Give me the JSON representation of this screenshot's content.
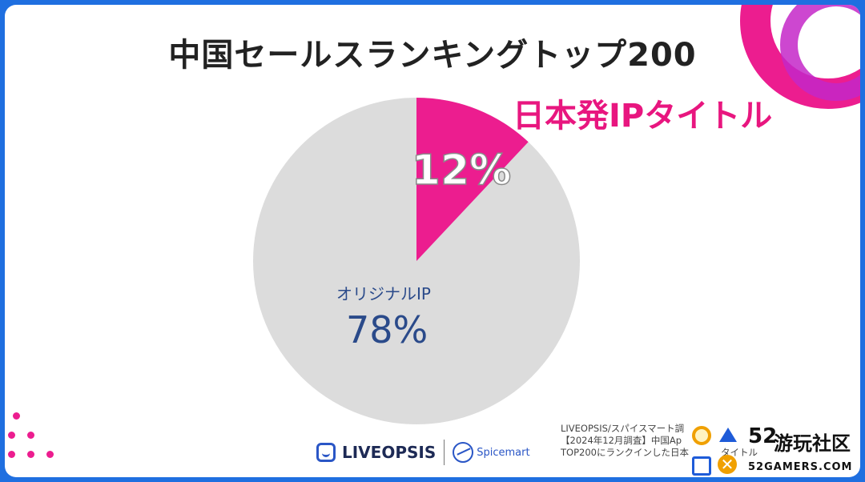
{
  "title": "中国セールスランキングトップ200",
  "chart_data": {
    "type": "pie",
    "slices": [
      {
        "label": "日本発IPタイトル",
        "value": 12,
        "display": "12%",
        "color": "#ec1d8f"
      },
      {
        "label": "オリジナルIP",
        "value": 78,
        "display": "78%",
        "color": "#dcdcdc"
      }
    ]
  },
  "logos": {
    "liveopsis": "LIVEOPSIS",
    "spicemart": "Spicemart"
  },
  "source_lines": [
    "LIVEOPSIS/スパイスマート調",
    "【2024年12月調査】中国Ap",
    "TOP200にランクインした日本"
  ],
  "source_tail": "タイトル",
  "watermark": {
    "number": "52",
    "name": "游玩社区",
    "url": "52GAMERS.COM"
  },
  "colors": {
    "accent_pink": "#ec1d8f",
    "frame_blue": "#1f6fe0",
    "label_blue": "#2a4a8a"
  }
}
